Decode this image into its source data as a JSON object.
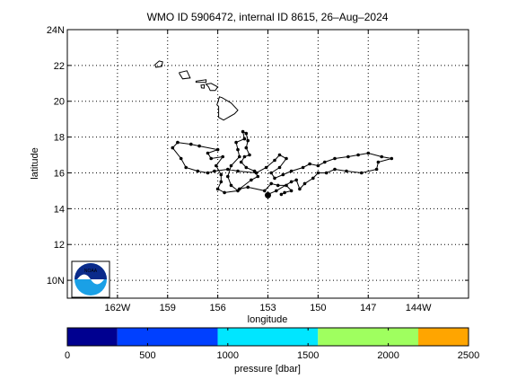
{
  "chart_data": {
    "type": "scatter",
    "title": "WMO ID 5906472, internal ID 8615, 26–Aug–2024",
    "xlabel": "longitude",
    "ylabel": "latitude",
    "xlim": [
      -165,
      -141
    ],
    "ylim": [
      9,
      24
    ],
    "grid": true,
    "x_ticks": [
      {
        "value": -162,
        "label": "162W"
      },
      {
        "value": -159,
        "label": "159"
      },
      {
        "value": -156,
        "label": "156"
      },
      {
        "value": -153,
        "label": "153"
      },
      {
        "value": -150,
        "label": "150"
      },
      {
        "value": -147,
        "label": "147"
      },
      {
        "value": -144,
        "label": "144W"
      }
    ],
    "y_ticks": [
      {
        "value": 10,
        "label": "10N"
      },
      {
        "value": 12,
        "label": "12"
      },
      {
        "value": 14,
        "label": "14"
      },
      {
        "value": 16,
        "label": "16"
      },
      {
        "value": 18,
        "label": "18"
      },
      {
        "value": 20,
        "label": "20"
      },
      {
        "value": 22,
        "label": "22"
      },
      {
        "value": 24,
        "label": "24N"
      }
    ],
    "islands": [
      {
        "name": "Kauai",
        "points": [
          [
            -159.75,
            22.05
          ],
          [
            -159.5,
            22.25
          ],
          [
            -159.3,
            22.2
          ],
          [
            -159.35,
            21.95
          ],
          [
            -159.7,
            21.9
          ]
        ]
      },
      {
        "name": "Oahu",
        "points": [
          [
            -158.3,
            21.6
          ],
          [
            -157.85,
            21.7
          ],
          [
            -157.65,
            21.3
          ],
          [
            -158.1,
            21.25
          ],
          [
            -158.3,
            21.55
          ]
        ]
      },
      {
        "name": "Molokai",
        "points": [
          [
            -157.3,
            21.12
          ],
          [
            -156.7,
            21.2
          ],
          [
            -156.7,
            21.05
          ],
          [
            -157.3,
            21.06
          ]
        ]
      },
      {
        "name": "Lanai",
        "points": [
          [
            -157.0,
            20.9
          ],
          [
            -156.8,
            20.92
          ],
          [
            -156.82,
            20.73
          ],
          [
            -156.98,
            20.75
          ]
        ]
      },
      {
        "name": "Maui",
        "points": [
          [
            -156.7,
            20.95
          ],
          [
            -156.4,
            21.0
          ],
          [
            -156.0,
            20.8
          ],
          [
            -156.15,
            20.6
          ],
          [
            -156.45,
            20.6
          ],
          [
            -156.55,
            20.8
          ]
        ]
      },
      {
        "name": "Hawaii",
        "points": [
          [
            -155.9,
            20.25
          ],
          [
            -155.75,
            20.2
          ],
          [
            -155.2,
            19.9
          ],
          [
            -154.8,
            19.5
          ],
          [
            -155.0,
            19.3
          ],
          [
            -155.65,
            18.95
          ],
          [
            -155.95,
            19.1
          ],
          [
            -155.95,
            19.7
          ],
          [
            -156.05,
            19.8
          ]
        ]
      }
    ],
    "series": [
      {
        "values": [
          [
            -152.2,
            14.8
          ],
          [
            -152.0,
            14.9
          ],
          [
            -151.6,
            15.0
          ],
          [
            -151.9,
            15.3
          ],
          [
            -152.4,
            15.3
          ],
          [
            -152.8,
            15.4
          ],
          [
            -153.2,
            15.0
          ],
          [
            -154.2,
            15.2
          ],
          [
            -154.7,
            15.1
          ],
          [
            -154.0,
            15.6
          ],
          [
            -153.6,
            15.8
          ],
          [
            -153.8,
            16.1
          ],
          [
            -154.3,
            16.3
          ],
          [
            -154.6,
            16.6
          ],
          [
            -154.4,
            16.9
          ],
          [
            -154.1,
            17.0
          ],
          [
            -154.3,
            17.4
          ],
          [
            -154.2,
            17.8
          ],
          [
            -154.3,
            18.2
          ],
          [
            -154.5,
            18.3
          ],
          [
            -154.4,
            17.9
          ],
          [
            -154.9,
            17.7
          ],
          [
            -154.8,
            17.3
          ],
          [
            -154.7,
            16.9
          ],
          [
            -155.2,
            16.4
          ],
          [
            -155.4,
            15.8
          ],
          [
            -155.2,
            15.3
          ],
          [
            -154.8,
            15.0
          ],
          [
            -155.6,
            14.9
          ],
          [
            -156.0,
            15.1
          ],
          [
            -155.8,
            15.5
          ],
          [
            -155.8,
            15.9
          ],
          [
            -156.1,
            16.4
          ],
          [
            -155.7,
            16.9
          ],
          [
            -156.4,
            16.8
          ],
          [
            -156.6,
            17.1
          ],
          [
            -156.0,
            17.3
          ],
          [
            -157.1,
            17.5
          ],
          [
            -157.6,
            17.6
          ],
          [
            -158.4,
            17.7
          ],
          [
            -158.7,
            17.4
          ],
          [
            -158.2,
            16.8
          ],
          [
            -157.9,
            16.3
          ],
          [
            -157.2,
            16.1
          ],
          [
            -156.6,
            16.0
          ],
          [
            -156.2,
            16.1
          ],
          [
            -155.4,
            16.2
          ],
          [
            -154.8,
            16.1
          ],
          [
            -153.7,
            16.0
          ],
          [
            -153.1,
            16.3
          ],
          [
            -152.6,
            16.7
          ],
          [
            -152.3,
            17.0
          ],
          [
            -151.9,
            16.8
          ],
          [
            -152.3,
            16.3
          ],
          [
            -152.8,
            16.0
          ],
          [
            -152.6,
            15.7
          ],
          [
            -152.1,
            15.9
          ],
          [
            -151.6,
            16.1
          ],
          [
            -150.9,
            16.3
          ],
          [
            -150.5,
            16.5
          ],
          [
            -150.0,
            16.4
          ],
          [
            -149.6,
            16.6
          ],
          [
            -149.0,
            16.8
          ],
          [
            -148.2,
            16.9
          ],
          [
            -147.6,
            17.0
          ],
          [
            -147.0,
            17.1
          ],
          [
            -146.2,
            16.9
          ],
          [
            -145.6,
            16.8
          ],
          [
            -146.4,
            16.6
          ],
          [
            -146.5,
            16.2
          ],
          [
            -147.4,
            16.0
          ],
          [
            -148.3,
            16.1
          ],
          [
            -149.0,
            16.2
          ],
          [
            -149.5,
            16.0
          ],
          [
            -150.0,
            16.0
          ],
          [
            -150.3,
            15.7
          ],
          [
            -150.8,
            15.4
          ],
          [
            -151.1,
            15.1
          ],
          [
            -151.3,
            15.6
          ],
          [
            -151.6,
            15.5
          ],
          [
            -152.5,
            15.0
          ],
          [
            -153.0,
            14.8
          ],
          [
            -153.0,
            14.75
          ]
        ]
      }
    ],
    "colorbar": {
      "label": "pressure [dbar]",
      "min": 0,
      "max": 2500,
      "ticks": [
        "0",
        "500",
        "1000",
        "1500",
        "2000",
        "2500"
      ],
      "bins": [
        {
          "from": 0,
          "to": 312,
          "color": "#000090"
        },
        {
          "from": 312,
          "to": 937,
          "color": "#0040ff"
        },
        {
          "from": 937,
          "to": 1562,
          "color": "#00e6ff"
        },
        {
          "from": 1562,
          "to": 2187,
          "color": "#9fff5f"
        },
        {
          "from": 2187,
          "to": 2500,
          "color": "#ffa500"
        }
      ]
    }
  },
  "logo": {
    "text": "NOAA",
    "colors": {
      "top": "#0a2a8a",
      "bottom": "#1aa0e6",
      "gull": "#ffffff"
    }
  }
}
